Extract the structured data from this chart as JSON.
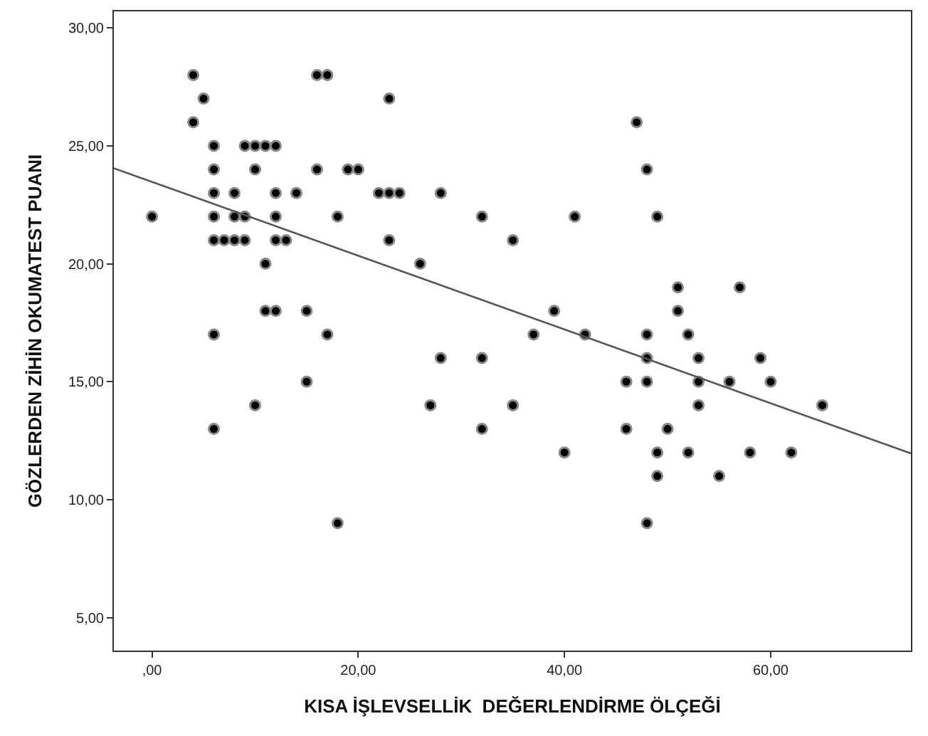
{
  "chart_data": {
    "type": "scatter",
    "xlabel": "KISA İŞLEVSELLİK  DEĞERLENDİRME ÖLÇEĞİ",
    "ylabel": "GÖZLERDEN ZİHİN OKUMATEST PUANI",
    "xlim": [
      -3.7,
      73.6
    ],
    "ylim": [
      3.6,
      30.7
    ],
    "xticks": [
      {
        "value": 0,
        "label": ",00"
      },
      {
        "value": 20,
        "label": "20,00"
      },
      {
        "value": 40,
        "label": "40,00"
      },
      {
        "value": 60,
        "label": "60,00"
      }
    ],
    "yticks": [
      {
        "value": 5,
        "label": "5,00"
      },
      {
        "value": 10,
        "label": "10,00"
      },
      {
        "value": 15,
        "label": "15,00"
      },
      {
        "value": 20,
        "label": "20,00"
      },
      {
        "value": 25,
        "label": "25,00"
      },
      {
        "value": 30,
        "label": "30,00"
      }
    ],
    "marker": "circle",
    "series": [
      {
        "color": "#000000",
        "x": [
          0,
          4,
          4,
          5,
          6,
          6,
          6,
          6,
          6,
          6,
          6,
          7,
          8,
          8,
          8,
          9,
          9,
          9,
          10,
          10,
          10,
          11,
          11,
          11,
          12,
          12,
          12,
          12,
          12,
          13,
          14,
          15,
          15,
          16,
          16,
          17,
          17,
          18,
          18,
          19,
          20,
          22,
          23,
          23,
          23,
          24,
          26,
          27,
          28,
          28,
          32,
          32,
          32,
          35,
          35,
          37,
          39,
          40,
          41,
          42,
          46,
          46,
          47,
          48,
          48,
          48,
          48,
          48,
          49,
          49,
          49,
          50,
          51,
          51,
          52,
          52,
          53,
          53,
          53,
          55,
          56,
          57,
          58,
          59,
          60,
          62,
          65
        ],
        "values": [
          22,
          28,
          26,
          27,
          25,
          24,
          23,
          22,
          21,
          17,
          13,
          21,
          23,
          22,
          21,
          22,
          21,
          25,
          25,
          24,
          14,
          25,
          20,
          18,
          25,
          23,
          22,
          21,
          18,
          21,
          23,
          18,
          15,
          28,
          24,
          28,
          17,
          22,
          9,
          24,
          24,
          23,
          23,
          27,
          21,
          23,
          20,
          14,
          23,
          16,
          22,
          16,
          13,
          21,
          14,
          17,
          18,
          12,
          22,
          17,
          15,
          13,
          26,
          24,
          17,
          16,
          15,
          9,
          22,
          12,
          11,
          13,
          19,
          18,
          17,
          12,
          16,
          15,
          14,
          11,
          15,
          19,
          12,
          16,
          15,
          12,
          14
        ]
      },
      {
        "type": "line",
        "color": "#555555",
        "line_style": "solid",
        "marker": "none",
        "x": [
          -3.7,
          73.6
        ],
        "values": [
          24.05,
          11.96
        ]
      }
    ]
  }
}
